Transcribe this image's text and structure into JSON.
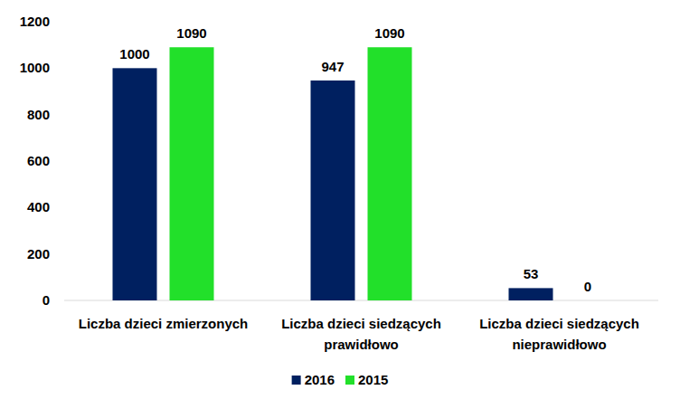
{
  "chart_data": {
    "type": "bar",
    "categories": [
      "Liczba dzieci zmierzonych",
      "Liczba dzieci siedzących prawidłowo",
      "Liczba dzieci siedzących nieprawidłowo"
    ],
    "series": [
      {
        "name": "2016",
        "color": "#002060",
        "values": [
          1000,
          947,
          53
        ]
      },
      {
        "name": "2015",
        "color": "#22e02a",
        "values": [
          1090,
          1090,
          0
        ]
      }
    ],
    "ylim": [
      0,
      1200
    ],
    "yticks": [
      0,
      200,
      400,
      600,
      800,
      1000,
      1200
    ],
    "grid": false,
    "legend": "bottom",
    "data_labels": true
  }
}
